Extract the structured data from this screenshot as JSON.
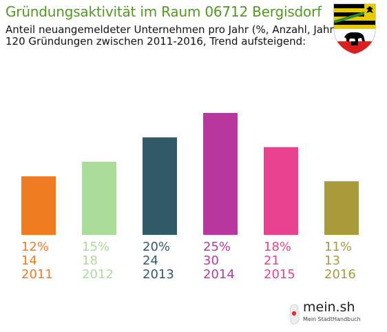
{
  "header": {
    "title": "Gründungsaktivität im Raum 06712 Bergisdorf",
    "subtitle_line1": "Anteil neuangemeldeter Unternehmen pro Jahr (%, Anzahl, Jahr)",
    "subtitle_line2": "120 Gründungen zwischen 2011-2016, Trend aufsteigend:",
    "crest_icon": "saxony-anhalt-coat-of-arms-icon"
  },
  "logo": {
    "name": "mein.sh",
    "tagline": "Mein StadtHandbuch",
    "icon": "germany-map-icon"
  },
  "chart_data": {
    "type": "bar",
    "title": "Gründungsaktivität im Raum 06712 Bergisdorf",
    "categories": [
      "2011",
      "2012",
      "2013",
      "2014",
      "2015",
      "2016"
    ],
    "series": [
      {
        "values": [
          12,
          15,
          20,
          25,
          18,
          11
        ]
      }
    ],
    "counts": [
      14,
      18,
      24,
      30,
      21,
      13
    ],
    "percent_labels": [
      "12%",
      "15%",
      "20%",
      "25%",
      "18%",
      "11%"
    ],
    "count_labels": [
      "14",
      "18",
      "24",
      "30",
      "21",
      "13"
    ],
    "colors": [
      "#ee7a22",
      "#aadd99",
      "#325a69",
      "#b9389f",
      "#e8428f",
      "#a89a3a"
    ],
    "grid": false,
    "legend": "none"
  }
}
